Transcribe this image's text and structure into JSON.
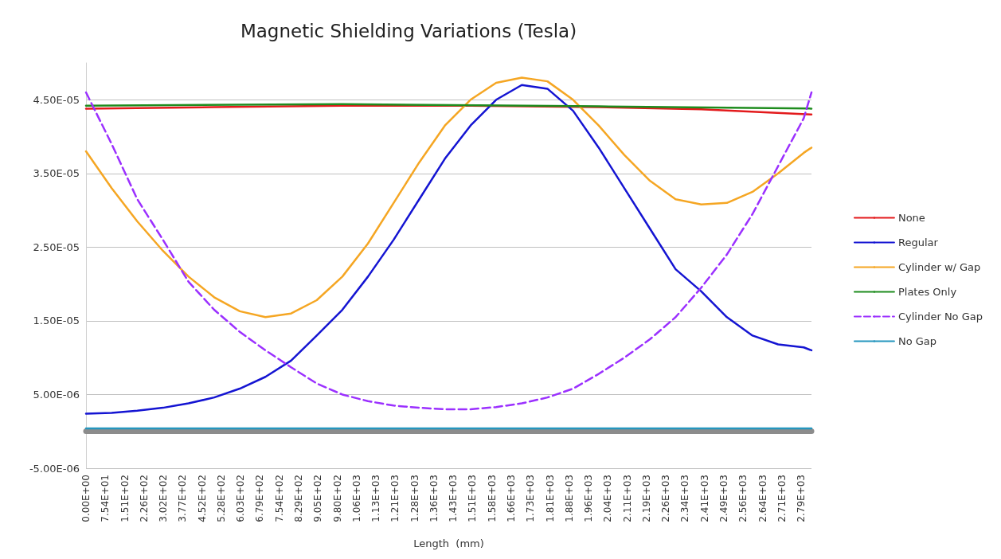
{
  "chart_data": {
    "type": "line",
    "title": "Magnetic Shielding Variations (Tesla)",
    "xlabel": "Length  (mm)",
    "xlim": [
      0,
      2830
    ],
    "ylim": [
      -5e-06,
      5e-05
    ],
    "xticks": [
      {
        "value": 0,
        "label": "0.00E+00"
      },
      {
        "value": 75.4,
        "label": "7.54E+01"
      },
      {
        "value": 150.8,
        "label": "1.51E+02"
      },
      {
        "value": 226.2,
        "label": "2.26E+02"
      },
      {
        "value": 301.6,
        "label": "3.02E+02"
      },
      {
        "value": 377,
        "label": "3.77E+02"
      },
      {
        "value": 452.4,
        "label": "4.52E+02"
      },
      {
        "value": 527.8,
        "label": "5.28E+02"
      },
      {
        "value": 603.2,
        "label": "6.03E+02"
      },
      {
        "value": 678.6,
        "label": "6.79E+02"
      },
      {
        "value": 754,
        "label": "7.54E+02"
      },
      {
        "value": 829.4,
        "label": "8.29E+02"
      },
      {
        "value": 904.8,
        "label": "9.05E+02"
      },
      {
        "value": 980.2,
        "label": "9.80E+02"
      },
      {
        "value": 1055.6,
        "label": "1.06E+03"
      },
      {
        "value": 1131,
        "label": "1.13E+03"
      },
      {
        "value": 1206.4,
        "label": "1.21E+03"
      },
      {
        "value": 1281.8,
        "label": "1.28E+03"
      },
      {
        "value": 1357.2,
        "label": "1.36E+03"
      },
      {
        "value": 1432.6,
        "label": "1.43E+03"
      },
      {
        "value": 1508,
        "label": "1.51E+03"
      },
      {
        "value": 1583.4,
        "label": "1.58E+03"
      },
      {
        "value": 1658.8,
        "label": "1.66E+03"
      },
      {
        "value": 1734.2,
        "label": "1.73E+03"
      },
      {
        "value": 1809.6,
        "label": "1.81E+03"
      },
      {
        "value": 1885,
        "label": "1.88E+03"
      },
      {
        "value": 1960.4,
        "label": "1.96E+03"
      },
      {
        "value": 2035.8,
        "label": "2.04E+03"
      },
      {
        "value": 2111.2,
        "label": "2.11E+03"
      },
      {
        "value": 2186.6,
        "label": "2.19E+03"
      },
      {
        "value": 2262,
        "label": "2.26E+03"
      },
      {
        "value": 2337.4,
        "label": "2.34E+03"
      },
      {
        "value": 2412.8,
        "label": "2.41E+03"
      },
      {
        "value": 2488.2,
        "label": "2.49E+03"
      },
      {
        "value": 2563.6,
        "label": "2.56E+03"
      },
      {
        "value": 2639,
        "label": "2.64E+03"
      },
      {
        "value": 2714.4,
        "label": "2.71E+03"
      },
      {
        "value": 2789.8,
        "label": "2.79E+03"
      }
    ],
    "yticks": [
      {
        "value": -5e-06,
        "label": "-5.00E-06"
      },
      {
        "value": 5e-06,
        "label": "5.00E-06"
      },
      {
        "value": 1.5e-05,
        "label": "1.50E-05"
      },
      {
        "value": 2.5e-05,
        "label": "2.50E-05"
      },
      {
        "value": 3.5e-05,
        "label": "3.50E-05"
      },
      {
        "value": 4.5e-05,
        "label": "4.50E-05"
      }
    ],
    "grid": "y",
    "legend": "right",
    "marker": "none",
    "series": [
      {
        "name": "None",
        "color": "#e31a1c",
        "x": [
          0,
          500,
          1000,
          1500,
          2000,
          2400,
          2830
        ],
        "values": [
          4.38e-05,
          4.4e-05,
          4.42e-05,
          4.42e-05,
          4.4e-05,
          4.37e-05,
          4.3e-05
        ]
      },
      {
        "name": "Regular",
        "color": "#1414d2",
        "x": [
          0,
          100,
          200,
          300,
          400,
          500,
          600,
          700,
          800,
          900,
          1000,
          1100,
          1200,
          1300,
          1400,
          1500,
          1600,
          1700,
          1800,
          1900,
          2000,
          2100,
          2200,
          2300,
          2400,
          2500,
          2600,
          2700,
          2800,
          2830
        ],
        "values": [
          2.4e-06,
          2.5e-06,
          2.8e-06,
          3.2e-06,
          3.8e-06,
          4.6e-06,
          5.8e-06,
          7.4e-06,
          9.6e-06,
          1.3e-05,
          1.65e-05,
          2.1e-05,
          2.6e-05,
          3.15e-05,
          3.7e-05,
          4.15e-05,
          4.5e-05,
          4.7e-05,
          4.65e-05,
          4.35e-05,
          3.85e-05,
          3.3e-05,
          2.75e-05,
          2.2e-05,
          1.9e-05,
          1.55e-05,
          1.3e-05,
          1.18e-05,
          1.14e-05,
          1.1e-05
        ]
      },
      {
        "name": "Cylinder w/ Gap",
        "color": "#f5a623",
        "x": [
          0,
          100,
          200,
          300,
          400,
          500,
          600,
          700,
          800,
          900,
          1000,
          1100,
          1200,
          1300,
          1400,
          1500,
          1600,
          1700,
          1800,
          1900,
          2000,
          2100,
          2200,
          2300,
          2400,
          2500,
          2600,
          2700,
          2800,
          2830
        ],
        "values": [
          3.8e-05,
          3.3e-05,
          2.85e-05,
          2.45e-05,
          2.1e-05,
          1.82e-05,
          1.63e-05,
          1.55e-05,
          1.6e-05,
          1.78e-05,
          2.1e-05,
          2.55e-05,
          3.1e-05,
          3.65e-05,
          4.15e-05,
          4.5e-05,
          4.73e-05,
          4.8e-05,
          4.75e-05,
          4.5e-05,
          4.15e-05,
          3.75e-05,
          3.4e-05,
          3.15e-05,
          3.08e-05,
          3.1e-05,
          3.25e-05,
          3.5e-05,
          3.78e-05,
          3.85e-05
        ]
      },
      {
        "name": "Plates Only",
        "color": "#1e8c1e",
        "x": [
          0,
          1000,
          2000,
          2830
        ],
        "values": [
          4.42e-05,
          4.44e-05,
          4.41e-05,
          4.38e-05
        ]
      },
      {
        "name": "Cylinder No Gap",
        "color": "#9b30ff",
        "line_style": "dashed",
        "x": [
          0,
          100,
          200,
          300,
          400,
          500,
          600,
          700,
          800,
          900,
          1000,
          1100,
          1200,
          1300,
          1400,
          1500,
          1600,
          1700,
          1800,
          1900,
          2000,
          2100,
          2200,
          2300,
          2400,
          2500,
          2600,
          2700,
          2800,
          2830
        ],
        "values": [
          4.6e-05,
          3.9e-05,
          3.15e-05,
          2.6e-05,
          2.03e-05,
          1.65e-05,
          1.35e-05,
          1.1e-05,
          8.7e-06,
          6.5e-06,
          5e-06,
          4.1e-06,
          3.5e-06,
          3.2e-06,
          3e-06,
          3e-06,
          3.3e-06,
          3.8e-06,
          4.6e-06,
          5.8e-06,
          7.8e-06,
          1e-05,
          1.25e-05,
          1.55e-05,
          1.95e-05,
          2.4e-05,
          2.95e-05,
          3.6e-05,
          4.25e-05,
          4.6e-05
        ]
      },
      {
        "name": "No Gap",
        "color": "#2596be",
        "x": [
          0,
          2830
        ],
        "values": [
          4e-07,
          4e-07
        ]
      }
    ]
  }
}
